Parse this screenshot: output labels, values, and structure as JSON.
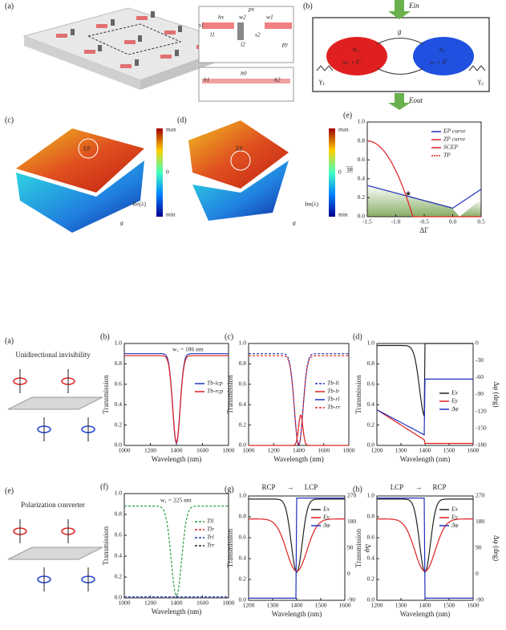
{
  "top": {
    "a": {
      "label": "(a)",
      "dims": [
        "hx",
        "s1",
        "l1",
        "w2",
        "l2",
        "s2",
        "w1",
        "px",
        "py",
        "h1",
        "h0",
        "h2"
      ]
    },
    "b": {
      "label": "(b)",
      "ein": "Ein",
      "eout": "Eout",
      "g": "g",
      "a1": "a₁",
      "m1": "ω₁ + iΓ₁",
      "a2": "a₂",
      "m2": "ω₂ + iΓ₂",
      "y1": "γ₁",
      "y2": "γ₂"
    },
    "c": {
      "label": "(c)",
      "cbar": [
        "max",
        "0",
        "min"
      ],
      "axis": "Re(λ)",
      "ep": "EP",
      "g": "g"
    },
    "d": {
      "label": "(d)",
      "cbar": [
        "max",
        "0",
        "min"
      ],
      "axis": "Im(λ)",
      "ep": "EP",
      "g": "g"
    },
    "e": {
      "label": "(e)",
      "yticks": [
        "0.0",
        "0.2",
        "0.4",
        "0.6",
        "0.8",
        "1.0"
      ],
      "xticks": [
        "-1.5",
        "-1.0",
        "-0.5",
        "0.0",
        "0.5"
      ],
      "ylabel": "|g|",
      "xlabel": "ΔΓ",
      "legend": [
        "EP curve",
        "ZP curve",
        "SCEP",
        "TP"
      ]
    }
  },
  "bottom": {
    "a": {
      "label": "(a)",
      "title": "Unidirectional invisibility"
    },
    "b": {
      "label": "(b)",
      "note": "w₁ = 186 nm",
      "legend": [
        "Tb-lcp",
        "Tb-rcp"
      ],
      "yticks": [
        "0.0",
        "0.2",
        "0.4",
        "0.6",
        "0.8",
        "1.0"
      ],
      "xticks": [
        "1000",
        "1200",
        "1400",
        "1600",
        "1800"
      ],
      "xlabel": "Wavelength (nm)",
      "ylabel": "Transmission"
    },
    "c": {
      "label": "(c)",
      "legend": [
        "Tb-ll",
        "Tb-lr",
        "Tb-rl",
        "Tb-rr"
      ],
      "yticks": [
        "0.0",
        "0.2",
        "0.4",
        "0.6",
        "0.8",
        "1.0"
      ],
      "xticks": [
        "1000",
        "1200",
        "1400",
        "1600",
        "1800"
      ],
      "xlabel": "Wavelength (nm)",
      "ylabel": "Transmission"
    },
    "d": {
      "label": "(d)",
      "legend": [
        "Ex",
        "Ey",
        "Δφ"
      ],
      "yticks": [
        "0.0",
        "0.2",
        "0.4",
        "0.6",
        "0.8",
        "1.0"
      ],
      "y2ticks": [
        "-180",
        "-150",
        "-120",
        "-90",
        "-60",
        "-30",
        "0"
      ],
      "xticks": [
        "1200",
        "1300",
        "1400",
        "1500",
        "1600"
      ],
      "xlabel": "Wavelength (nm)",
      "ylabel": "Transmission",
      "y2label": "Δφ (deg)"
    },
    "e": {
      "label": "(e)",
      "title": "Polarization converter"
    },
    "f": {
      "label": "(f)",
      "note": "w₁ = 225 nm",
      "legend": [
        "Tll",
        "Tlr",
        "Trl",
        "Trr"
      ],
      "yticks": [
        "0.0",
        "0.2",
        "0.4",
        "0.6",
        "0.8",
        "1.0"
      ],
      "xticks": [
        "1000",
        "1200",
        "1400",
        "1600",
        "1800"
      ],
      "xlabel": "Wavelength (nm)",
      "ylabel": "Transmission"
    },
    "g": {
      "label": "(g)",
      "head": [
        "RCP",
        "LCP"
      ],
      "legend": [
        "Ex",
        "Ey",
        "Δφ"
      ],
      "yticks": [
        "0.0",
        "0.2",
        "0.4",
        "0.6",
        "0.8",
        "1.0"
      ],
      "y2ticks": [
        "-90",
        "0",
        "90",
        "180",
        "270"
      ],
      "xticks": [
        "1200",
        "1300",
        "1400",
        "1500",
        "1600"
      ],
      "xlabel": "Wavelength (nm)",
      "ylabel": "Transmission",
      "y2label": "Δφ"
    },
    "h": {
      "label": "(h)",
      "head": [
        "LCP",
        "RCP"
      ],
      "legend": [
        "Ex",
        "Ey",
        "Δφ"
      ],
      "yticks": [
        "0.0",
        "0.2",
        "0.4",
        "0.6",
        "0.8",
        "1.0"
      ],
      "y2ticks": [
        "-90",
        "0",
        "90",
        "180",
        "270"
      ],
      "xticks": [
        "1200",
        "1300",
        "1400",
        "1500",
        "1600"
      ],
      "xlabel": "Wavelength (nm)",
      "ylabel": "Transmission",
      "y2label": "Δφ (deg)"
    }
  }
}
